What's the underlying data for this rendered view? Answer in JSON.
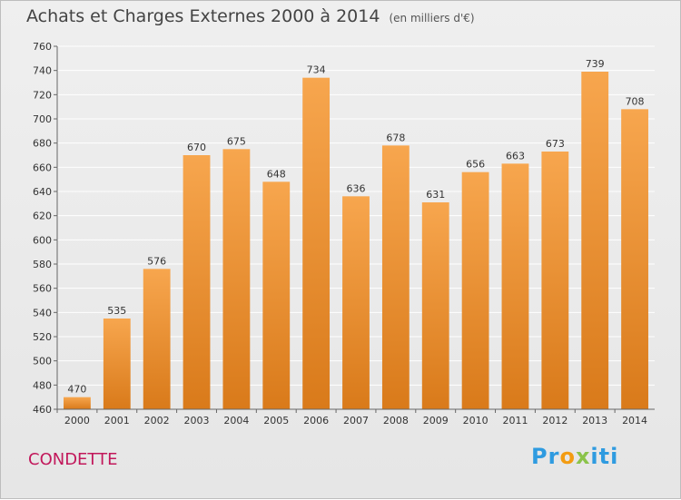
{
  "header": {
    "title": "Achats et Charges Externes 2000 à 2014",
    "subtitle": "(en milliers d'€)"
  },
  "footer": {
    "city": "CONDETTE",
    "logo": {
      "part1": "Pr",
      "part2": "o",
      "part3": "x",
      "part4": "iti"
    }
  },
  "colors": {
    "bar_top": "#f7a64e",
    "bar_bottom": "#d97a1a",
    "grid": "#ffffff",
    "city": "#c2185b"
  },
  "chart_data": {
    "type": "bar",
    "title": "Achats et Charges Externes 2000 à 2014",
    "subtitle": "(en milliers d'€)",
    "categories": [
      "2000",
      "2001",
      "2002",
      "2003",
      "2004",
      "2005",
      "2006",
      "2007",
      "2008",
      "2009",
      "2010",
      "2011",
      "2012",
      "2013",
      "2014"
    ],
    "values": [
      470,
      535,
      576,
      670,
      675,
      648,
      734,
      636,
      678,
      631,
      656,
      663,
      673,
      739,
      708
    ],
    "ylim": [
      460,
      760
    ],
    "yticks": [
      460,
      480,
      500,
      520,
      540,
      560,
      580,
      600,
      620,
      640,
      660,
      680,
      700,
      720,
      740,
      760
    ],
    "grid": true,
    "xlabel": "",
    "ylabel": ""
  }
}
